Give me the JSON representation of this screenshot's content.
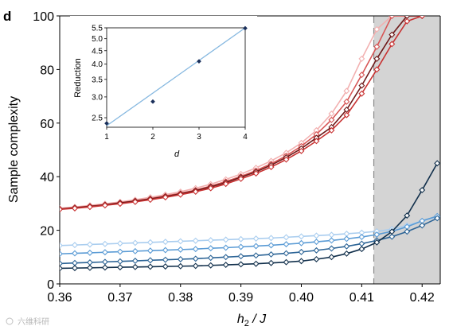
{
  "panel_letter": "d",
  "watermark": "六维科研",
  "chart_data": [
    {
      "type": "line",
      "xlabel_main": "h",
      "xlabel_sub": "2",
      "xlabel_rest": " / J",
      "ylabel": "Sample complexity",
      "xlim": [
        0.36,
        0.423
      ],
      "ylim": [
        0,
        100
      ],
      "x_ticks": [
        0.36,
        0.37,
        0.38,
        0.39,
        0.4,
        0.41,
        0.42
      ],
      "x_tick_labels": [
        "0.36",
        "0.37",
        "0.38",
        "0.39",
        "0.40",
        "0.41",
        "0.42"
      ],
      "y_ticks": [
        0,
        20,
        40,
        60,
        80,
        100
      ],
      "y_tick_labels": [
        "0",
        "20",
        "40",
        "60",
        "80",
        "100"
      ],
      "grid": false,
      "critical_line_x": 0.412,
      "shaded_region": [
        0.412,
        0.423
      ],
      "shade_color": "#d4d4d4",
      "marker": "diamond",
      "series": [
        {
          "color": "#f2b0b0",
          "x": [
            0.36,
            0.3625,
            0.365,
            0.3675,
            0.37,
            0.3725,
            0.375,
            0.3775,
            0.38,
            0.3825,
            0.385,
            0.3875,
            0.39,
            0.3925,
            0.395,
            0.3975,
            0.4,
            0.4025,
            0.405,
            0.4075,
            0.41,
            0.4125,
            0.415,
            0.4175,
            0.42
          ],
          "values": [
            28.2,
            28.7,
            29.3,
            29.9,
            30.6,
            31.4,
            32.3,
            33.3,
            34.4,
            35.7,
            37.2,
            39.0,
            41.0,
            43.3,
            45.9,
            48.9,
            52.6,
            57.3,
            63.5,
            72.0,
            84.0,
            95.0,
            100,
            100,
            100
          ]
        },
        {
          "color": "#d75656",
          "x": [
            0.36,
            0.3625,
            0.365,
            0.3675,
            0.37,
            0.3725,
            0.375,
            0.3775,
            0.38,
            0.3825,
            0.385,
            0.3875,
            0.39,
            0.3925,
            0.395,
            0.3975,
            0.4,
            0.4025,
            0.405,
            0.4075,
            0.41,
            0.4125,
            0.415,
            0.4175,
            0.42
          ],
          "values": [
            28.0,
            28.5,
            29.0,
            29.6,
            30.3,
            31.0,
            31.8,
            32.8,
            33.8,
            35.0,
            36.5,
            38.2,
            40.1,
            42.3,
            44.8,
            47.8,
            51.4,
            55.8,
            61.2,
            68.0,
            78.0,
            88.5,
            100,
            100,
            100
          ]
        },
        {
          "color": "#6e1a1a",
          "x": [
            0.36,
            0.3625,
            0.365,
            0.3675,
            0.37,
            0.3725,
            0.375,
            0.3775,
            0.38,
            0.3825,
            0.385,
            0.3875,
            0.39,
            0.3925,
            0.395,
            0.3975,
            0.4,
            0.4025,
            0.405,
            0.4075,
            0.41,
            0.4125,
            0.415,
            0.4175,
            0.42
          ],
          "values": [
            27.9,
            28.4,
            28.9,
            29.5,
            30.2,
            30.9,
            31.7,
            32.6,
            33.6,
            34.8,
            36.2,
            37.8,
            39.8,
            41.8,
            44.3,
            47.2,
            50.5,
            54.5,
            58.5,
            65.0,
            74.0,
            84.0,
            93.0,
            100,
            100
          ]
        },
        {
          "color": "#c83232",
          "x": [
            0.36,
            0.3625,
            0.365,
            0.3675,
            0.37,
            0.3725,
            0.375,
            0.3775,
            0.38,
            0.3825,
            0.385,
            0.3875,
            0.39,
            0.3925,
            0.395,
            0.3975,
            0.4,
            0.4025,
            0.405,
            0.4075,
            0.41,
            0.4125,
            0.415,
            0.4175,
            0.42
          ],
          "values": [
            27.8,
            28.2,
            28.7,
            29.3,
            29.9,
            30.6,
            31.4,
            32.3,
            33.3,
            34.4,
            35.7,
            37.3,
            39.2,
            41.2,
            43.6,
            46.4,
            49.6,
            53.3,
            57.3,
            63.0,
            71.0,
            80.0,
            89.5,
            98.0,
            100
          ]
        },
        {
          "color": "#a9cdef",
          "x": [
            0.36,
            0.3625,
            0.365,
            0.3675,
            0.37,
            0.3725,
            0.375,
            0.3775,
            0.38,
            0.3825,
            0.385,
            0.3875,
            0.39,
            0.3925,
            0.395,
            0.3975,
            0.4,
            0.4025,
            0.405,
            0.4075,
            0.41,
            0.4125,
            0.415,
            0.4175,
            0.42,
            0.4225
          ],
          "values": [
            14.3,
            14.5,
            14.7,
            14.9,
            15.1,
            15.3,
            15.5,
            15.7,
            15.9,
            16.1,
            16.3,
            16.5,
            16.7,
            16.9,
            17.1,
            17.4,
            17.7,
            18.0,
            18.3,
            18.7,
            19.1,
            19.6,
            20.4,
            21.8,
            23.5,
            25.0
          ]
        },
        {
          "color": "#5a9bd5",
          "x": [
            0.36,
            0.3625,
            0.365,
            0.3675,
            0.37,
            0.3725,
            0.375,
            0.3775,
            0.38,
            0.3825,
            0.385,
            0.3875,
            0.39,
            0.3925,
            0.395,
            0.3975,
            0.4,
            0.4025,
            0.405,
            0.4075,
            0.41,
            0.4125,
            0.415,
            0.4175,
            0.42,
            0.4225
          ],
          "values": [
            11.2,
            11.4,
            11.6,
            11.8,
            12.0,
            12.2,
            12.4,
            12.6,
            12.8,
            13.0,
            13.3,
            13.5,
            13.8,
            14.1,
            14.4,
            14.8,
            15.2,
            15.7,
            16.2,
            16.8,
            17.5,
            18.4,
            19.6,
            21.3,
            23.5,
            25.3
          ]
        },
        {
          "color": "#2c6496",
          "x": [
            0.36,
            0.3625,
            0.365,
            0.3675,
            0.37,
            0.3725,
            0.375,
            0.3775,
            0.38,
            0.3825,
            0.385,
            0.3875,
            0.39,
            0.3925,
            0.395,
            0.3975,
            0.4,
            0.4025,
            0.405,
            0.4075,
            0.41,
            0.4125,
            0.415,
            0.4175,
            0.42,
            0.4225
          ],
          "values": [
            7.6,
            7.8,
            8.0,
            8.2,
            8.4,
            8.6,
            8.8,
            9.0,
            9.2,
            9.4,
            9.7,
            10.0,
            10.3,
            10.6,
            11.0,
            11.4,
            11.9,
            12.5,
            13.2,
            14.0,
            15.0,
            16.2,
            17.6,
            19.5,
            21.8,
            24.5
          ]
        },
        {
          "color": "#12304c",
          "x": [
            0.36,
            0.3625,
            0.365,
            0.3675,
            0.37,
            0.3725,
            0.375,
            0.3775,
            0.38,
            0.3825,
            0.385,
            0.3875,
            0.39,
            0.3925,
            0.395,
            0.3975,
            0.4,
            0.4025,
            0.405,
            0.4075,
            0.41,
            0.4125,
            0.415,
            0.4175,
            0.42,
            0.4225
          ],
          "values": [
            5.8,
            5.9,
            6.0,
            6.1,
            6.2,
            6.3,
            6.4,
            6.5,
            6.6,
            6.7,
            6.9,
            7.1,
            7.3,
            7.5,
            7.8,
            8.1,
            8.5,
            9.2,
            10.0,
            11.3,
            13.0,
            15.5,
            19.5,
            25.5,
            35.0,
            45.0
          ]
        }
      ]
    },
    {
      "type": "scatter",
      "xlabel": "d",
      "ylabel": "Reduction",
      "xlim": [
        1,
        4
      ],
      "ylim": [
        2.3,
        5.5
      ],
      "y_scale": "log",
      "x_ticks": [
        1,
        2,
        3,
        4
      ],
      "x_tick_labels": [
        "1",
        "2",
        "3",
        "4"
      ],
      "y_ticks": [
        2.5,
        3.0,
        3.5,
        4.0,
        4.5,
        5.0,
        5.5
      ],
      "y_tick_labels": [
        "2.5",
        "3.0",
        "3.5",
        "4.0",
        "4.5",
        "5.0",
        "5.5"
      ],
      "points_color": "#1a2f5a",
      "fit_color": "#86b8e0",
      "x": [
        1,
        2,
        3,
        4
      ],
      "values": [
        2.38,
        2.88,
        4.1,
        5.48
      ],
      "fit": [
        [
          1,
          2.33
        ],
        [
          4,
          5.5
        ]
      ]
    }
  ]
}
